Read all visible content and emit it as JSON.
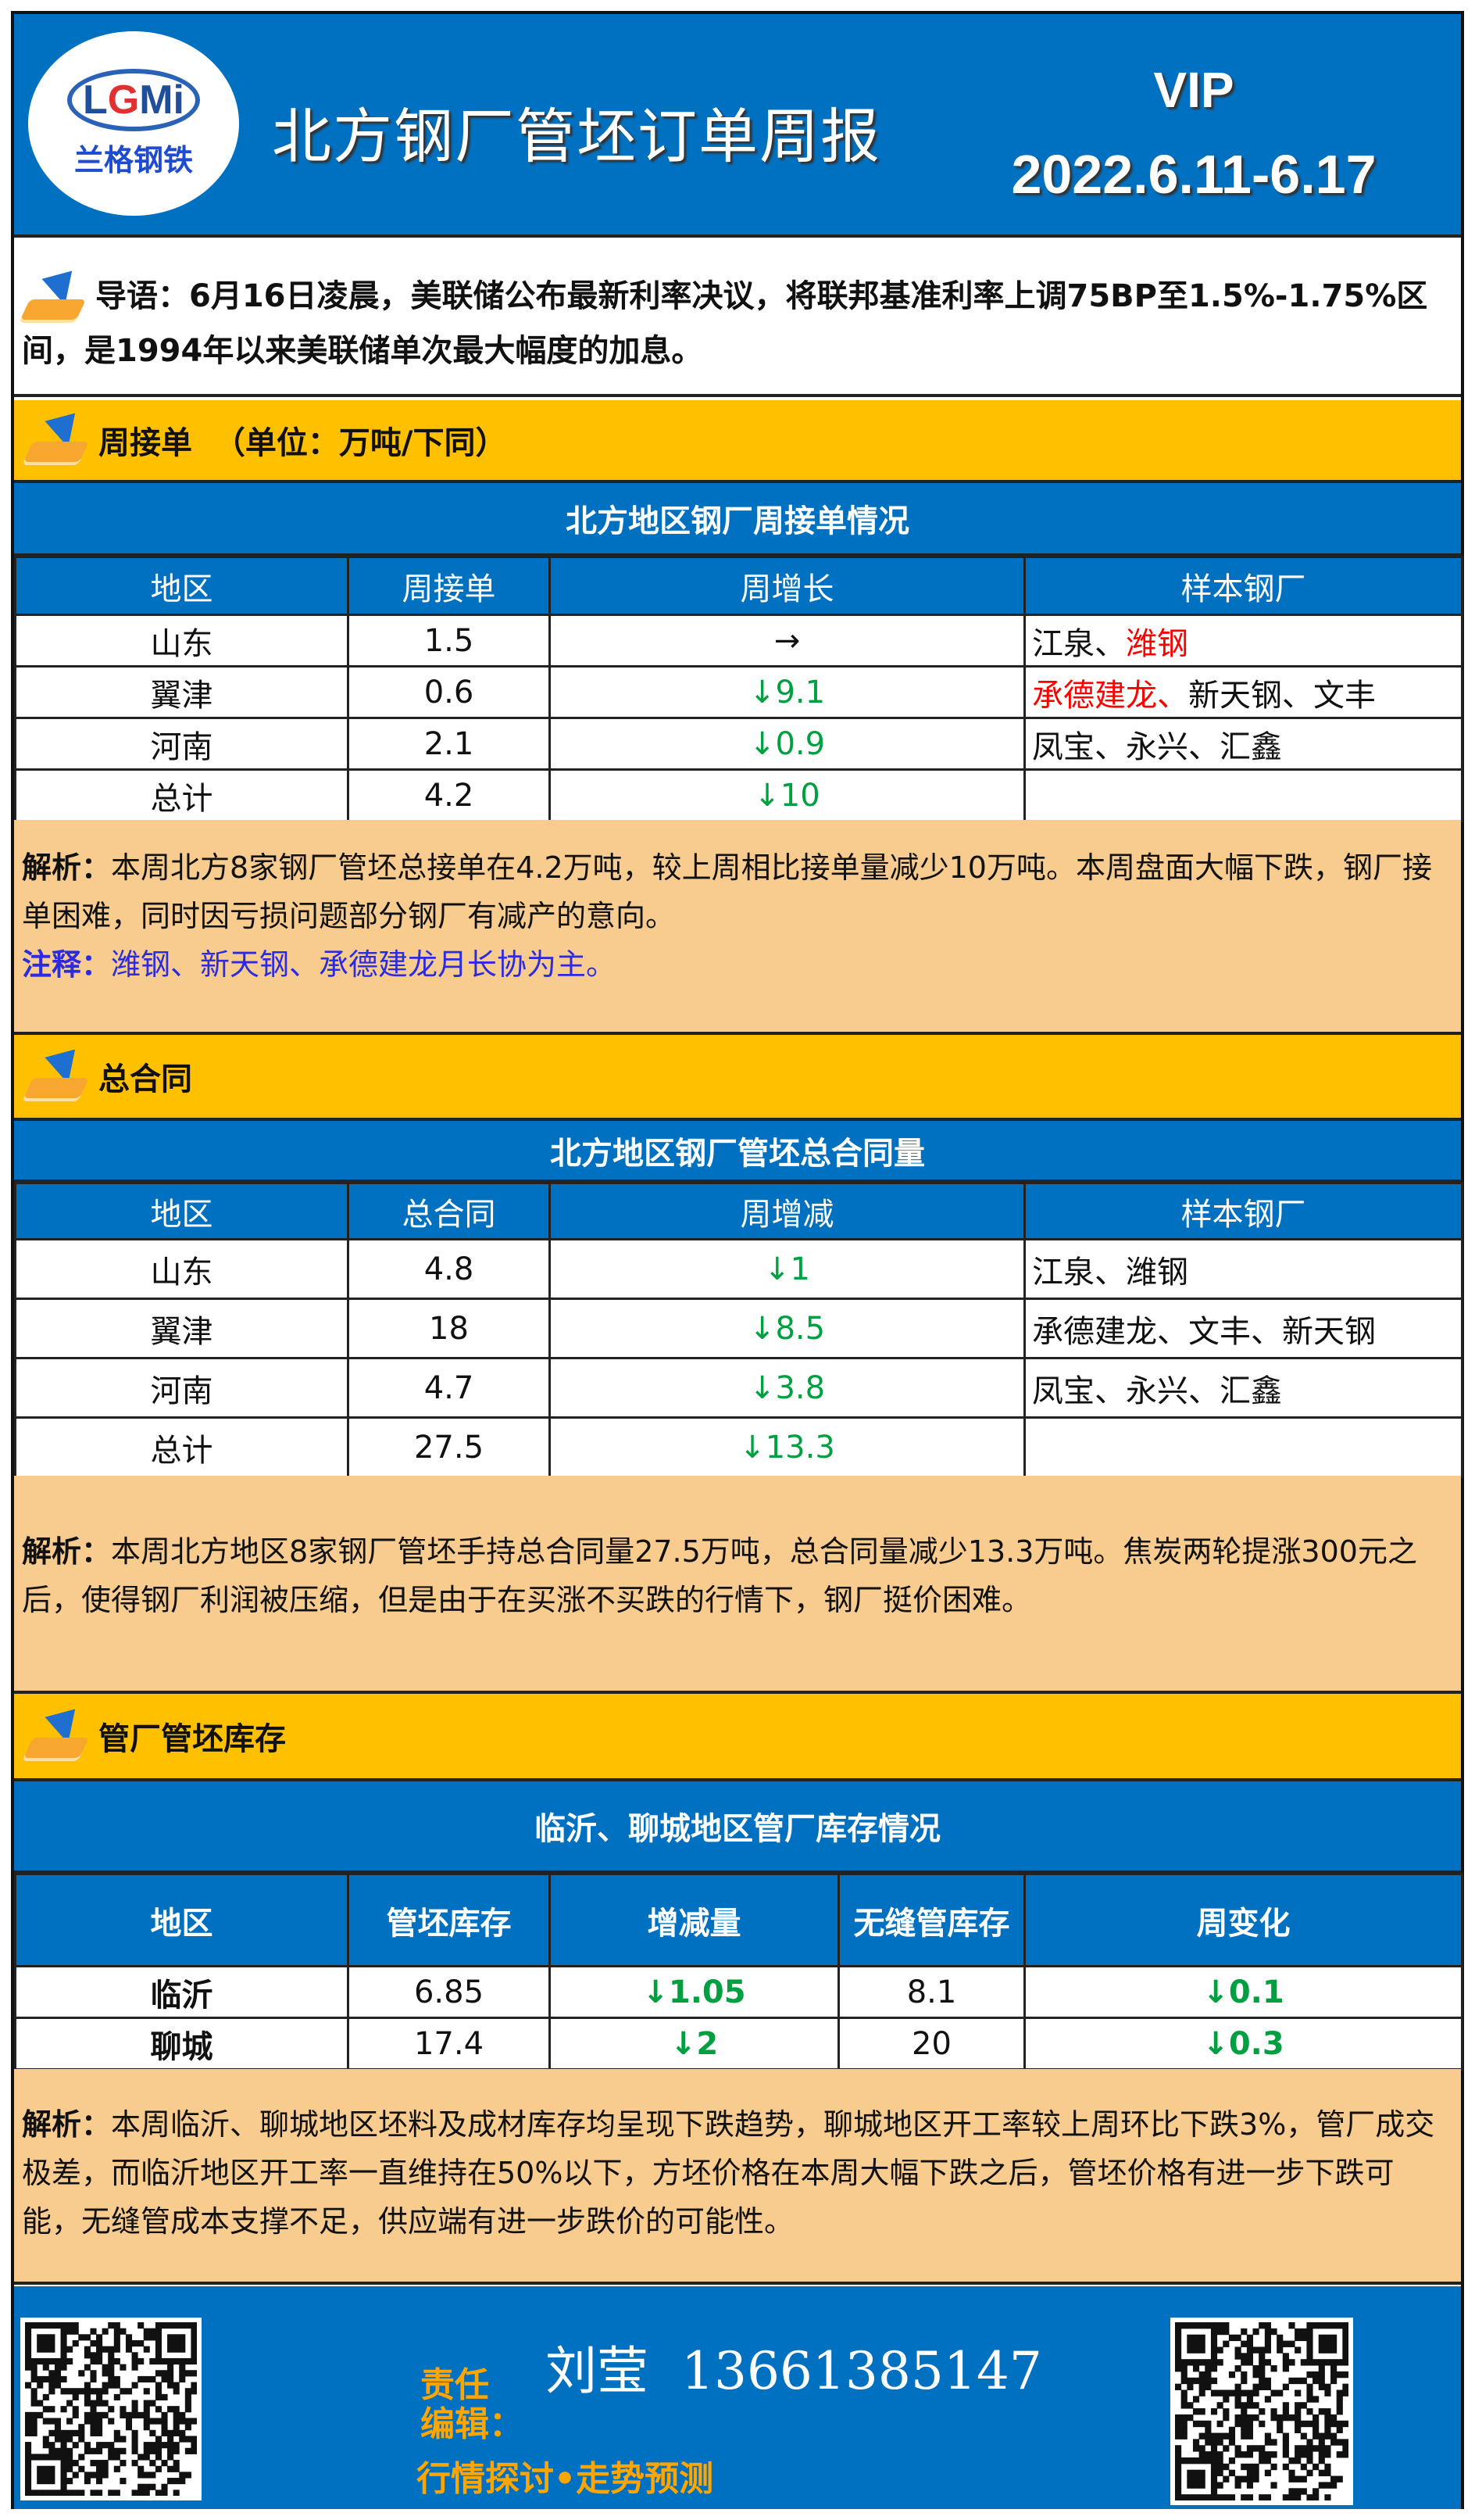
{
  "header": {
    "logo_text": "LGMi",
    "logo_cn": "兰格钢铁",
    "title": "北方钢厂管坯订单周报",
    "vip": "VIP",
    "date": "2022.6.11-6.17"
  },
  "intro": {
    "text": "导语：6月16日凌晨，美联储公布最新利率决议，将联邦基准利率上调75BP至1.5%-1.75%区间，是1994年以来美联储单次最大幅度的加息。"
  },
  "section1": {
    "heading": "周接单  （单位：万吨/下同）",
    "table_title": "北方地区钢厂周接单情况",
    "columns": [
      "地区",
      "周接单",
      "周增长",
      "样本钢厂"
    ],
    "rows": [
      {
        "region": "山东",
        "value": "1.5",
        "change": "→",
        "change_color": "#111111",
        "mills": [
          {
            "t": "江泉、"
          },
          {
            "t": "潍钢",
            "red": true
          }
        ]
      },
      {
        "region": "翼津",
        "value": "0.6",
        "change": "↓9.1",
        "change_color": "#00a040",
        "mills": [
          {
            "t": "承德建龙、",
            "red": true
          },
          {
            "t": "新天钢、文丰"
          }
        ]
      },
      {
        "region": "河南",
        "value": "2.1",
        "change": "↓0.9",
        "change_color": "#00a040",
        "mills": [
          {
            "t": "凤宝、永兴、汇鑫"
          }
        ]
      },
      {
        "region": "总计",
        "value": "4.2",
        "change": "↓10",
        "change_color": "#00a040",
        "mills": []
      }
    ],
    "analysis_label": "解析：",
    "analysis": "本周北方8家钢厂管坯总接单在4.2万吨，较上周相比接单量减少10万吨。本周盘面大幅下跌，钢厂接单困难，同时因亏损问题部分钢厂有减产的意向。",
    "note_label": "注释：",
    "note": "潍钢、新天钢、承德建龙月长协为主。"
  },
  "section2": {
    "heading": "总合同",
    "table_title": "北方地区钢厂管坯总合同量",
    "columns": [
      "地区",
      "总合同",
      "周增减",
      "样本钢厂"
    ],
    "rows": [
      {
        "region": "山东",
        "value": "4.8",
        "change": "↓1",
        "change_color": "#00a040",
        "mills": [
          {
            "t": "江泉、潍钢"
          }
        ]
      },
      {
        "region": "翼津",
        "value": "18",
        "change": "↓8.5",
        "change_color": "#00a040",
        "mills": [
          {
            "t": "承德建龙、文丰、新天钢"
          }
        ]
      },
      {
        "region": "河南",
        "value": "4.7",
        "change": "↓3.8",
        "change_color": "#00a040",
        "mills": [
          {
            "t": "凤宝、永兴、汇鑫"
          }
        ]
      },
      {
        "region": "总计",
        "value": "27.5",
        "change": "↓13.3",
        "change_color": "#00a040",
        "mills": []
      }
    ],
    "analysis_label": "解析：",
    "analysis": "本周北方地区8家钢厂管坯手持总合同量27.5万吨，总合同量减少13.3万吨。焦炭两轮提涨300元之后，使得钢厂利润被压缩，但是由于在买涨不买跌的行情下，钢厂挺价困难。"
  },
  "section3": {
    "heading": "管厂管坯库存",
    "table_title": "临沂、聊城地区管厂库存情况",
    "columns": [
      "地区",
      "管坯库存",
      "增减量",
      "无缝管库存",
      "周变化"
    ],
    "rows": [
      {
        "region": "临沂",
        "billet": "6.85",
        "billet_change": "↓1.05",
        "seamless": "8.1",
        "seamless_change": "↓0.1"
      },
      {
        "region": "聊城",
        "billet": "17.4",
        "billet_change": "↓2",
        "seamless": "20",
        "seamless_change": "↓0.3"
      }
    ],
    "analysis_label": "解析：",
    "analysis": "本周临沂、聊城地区坯料及成材库存均呈现下跌趋势，聊城地区开工率较上周环比下跌3%，管厂成交极差，而临沂地区开工率一直维持在50%以下，方坯价格在本周大幅下跌之后，管坯价格有进一步下跌可能，无缝管成本支撑不足，供应端有进一步跌价的可能性。"
  },
  "footer": {
    "label1": "责任",
    "label2": "编辑：",
    "slogan": "行情探讨•走势预测",
    "contact": "刘莹  13661385147"
  },
  "colors": {
    "blue": "#0070c0",
    "yellow": "#ffc000",
    "beige": "#f8cb8e",
    "green": "#00a040",
    "red": "#ff0000",
    "note": "#2b2be0"
  }
}
